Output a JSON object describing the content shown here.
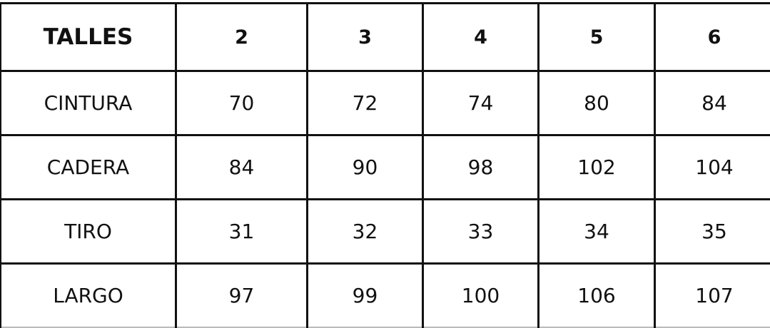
{
  "table": {
    "header": [
      "TALLES",
      "2",
      "3",
      "4",
      "5",
      "6"
    ],
    "rows": [
      {
        "label": "CINTURA",
        "values": [
          "70",
          "72",
          "74",
          "80",
          "84"
        ]
      },
      {
        "label": "CADERA",
        "values": [
          "84",
          "90",
          "98",
          "102",
          "104"
        ]
      },
      {
        "label": "TIRO",
        "values": [
          "31",
          "32",
          "33",
          "34",
          "35"
        ]
      },
      {
        "label": "LARGO",
        "values": [
          "97",
          "99",
          "100",
          "106",
          "107"
        ]
      }
    ]
  }
}
